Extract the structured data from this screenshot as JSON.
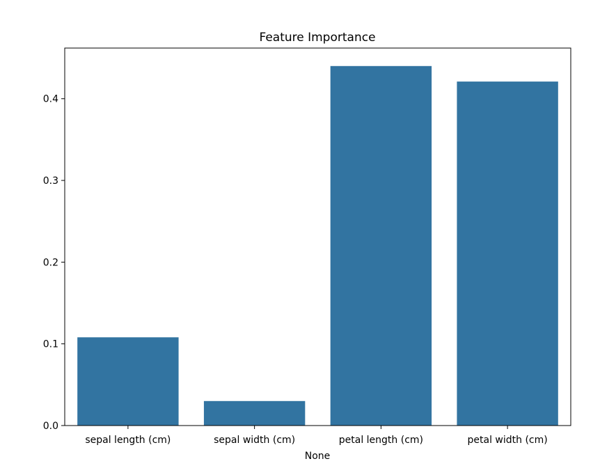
{
  "chart_data": {
    "type": "bar",
    "title": "Feature Importance",
    "xlabel": "None",
    "ylabel": "",
    "categories": [
      "sepal length (cm)",
      "sepal width (cm)",
      "petal length (cm)",
      "petal width (cm)"
    ],
    "values": [
      0.108,
      0.03,
      0.44,
      0.421
    ],
    "ylim": [
      0,
      0.462
    ],
    "yticks": [
      0.0,
      0.1,
      0.2,
      0.3,
      0.4
    ],
    "ytick_labels": [
      "0.0",
      "0.1",
      "0.2",
      "0.3",
      "0.4"
    ],
    "bar_color": "#3274a1",
    "grid": false,
    "legend": "none"
  }
}
